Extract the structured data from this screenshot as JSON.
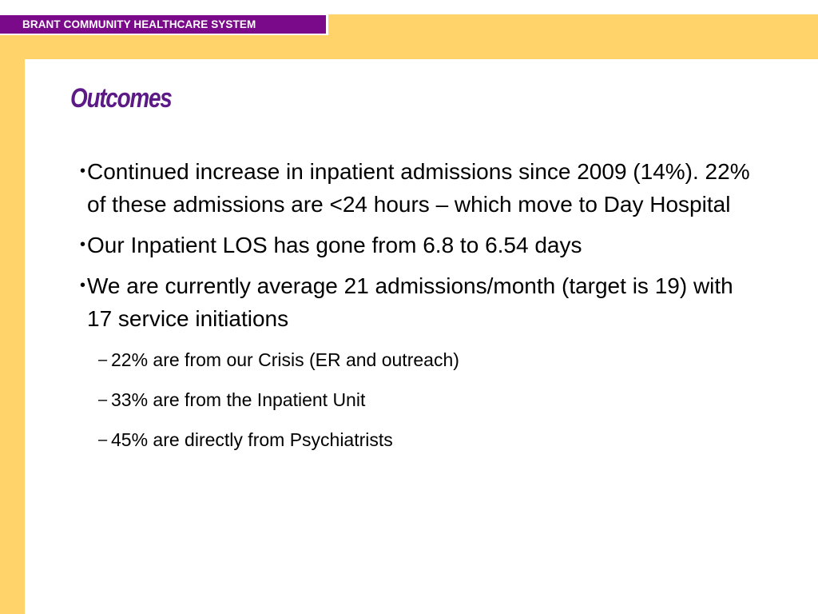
{
  "header": {
    "organization": "BRANT COMMUNITY HEALTHCARE SYSTEM"
  },
  "slide": {
    "title": "Outcomes",
    "bullets": [
      {
        "marker": "•",
        "text": "Continued increase in inpatient admissions since 2009 (14%).  22% of these admissions are <24 hours – which move to Day Hospital"
      },
      {
        "marker": "•",
        "text": "Our Inpatient LOS has gone from 6.8 to 6.54 days"
      },
      {
        "marker": "•",
        "text": "We are currently average 21 admissions/month (target is 19) with 17 service initiations"
      }
    ],
    "sub_bullets": [
      {
        "marker": "–",
        "text": "22% are from our Crisis (ER and outreach)"
      },
      {
        "marker": "–",
        "text": "33% are from the Inpatient Unit"
      },
      {
        "marker": "–",
        "text": "45% are directly from Psychiatrists"
      }
    ]
  },
  "colors": {
    "frame": "#ffd36a",
    "header_bar": "#7b0a8a",
    "title": "#5b1a86"
  }
}
